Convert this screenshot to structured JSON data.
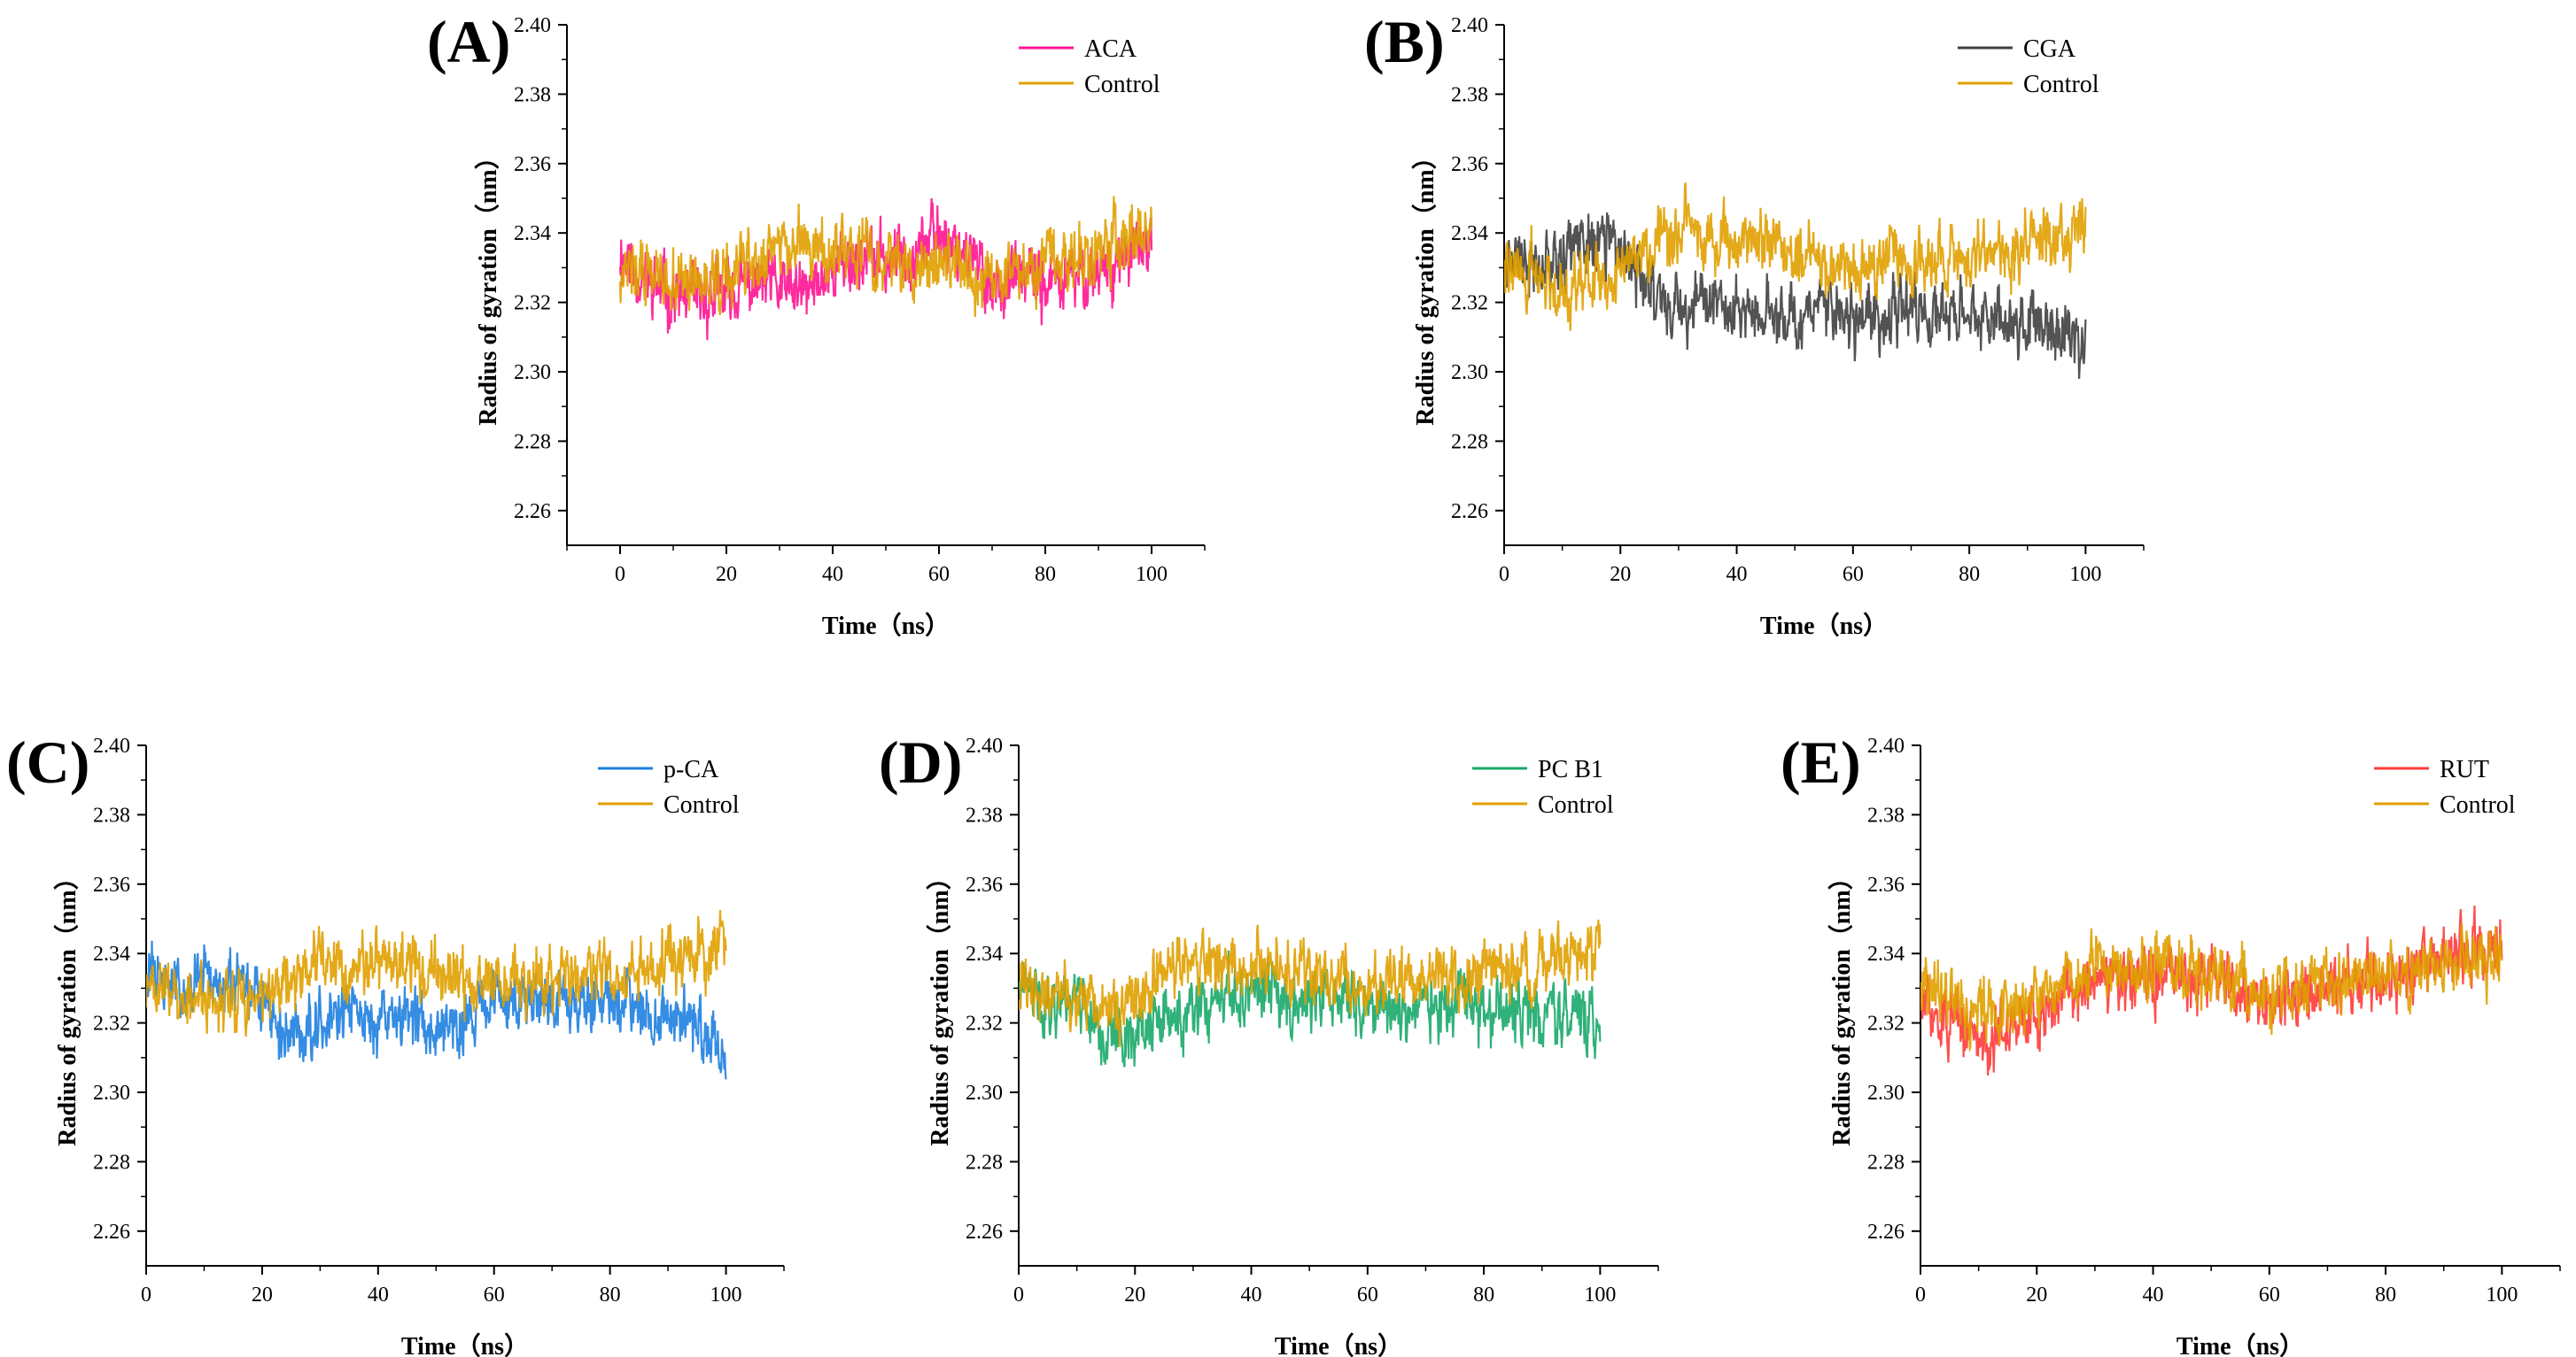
{
  "figure": {
    "background": "#ffffff"
  },
  "chart_data": [
    {
      "panel_label": "(A)",
      "type": "line",
      "xlabel": "Time（ns）",
      "ylabel": "Radius of gyration（nm）",
      "xlim": [
        -10,
        110
      ],
      "ylim": [
        2.25,
        2.4
      ],
      "xticks": [
        0,
        20,
        40,
        60,
        80,
        100
      ],
      "yticks": [
        2.26,
        2.28,
        2.3,
        2.32,
        2.34,
        2.36,
        2.38,
        2.4
      ],
      "grid": false,
      "legend_position": "top-right",
      "series": [
        {
          "name": "ACA",
          "color": "#ff1493",
          "seed": 11,
          "noise": 0.009,
          "x": [
            0,
            5,
            10,
            15,
            20,
            25,
            30,
            35,
            40,
            45,
            50,
            55,
            60,
            65,
            70,
            75,
            80,
            85,
            90,
            95,
            100
          ],
          "y": [
            2.335,
            2.326,
            2.322,
            2.32,
            2.323,
            2.325,
            2.324,
            2.322,
            2.33,
            2.333,
            2.332,
            2.335,
            2.34,
            2.335,
            2.325,
            2.327,
            2.325,
            2.326,
            2.33,
            2.332,
            2.336
          ]
        },
        {
          "name": "Control",
          "color": "#e0a000",
          "seed": 12,
          "noise": 0.009,
          "x": [
            0,
            5,
            10,
            15,
            20,
            25,
            30,
            35,
            40,
            45,
            50,
            55,
            60,
            65,
            70,
            75,
            80,
            85,
            90,
            95,
            100
          ],
          "y": [
            2.33,
            2.328,
            2.326,
            2.325,
            2.327,
            2.332,
            2.338,
            2.335,
            2.334,
            2.333,
            2.332,
            2.33,
            2.331,
            2.329,
            2.328,
            2.33,
            2.331,
            2.332,
            2.334,
            2.338,
            2.34
          ]
        }
      ]
    },
    {
      "panel_label": "(B)",
      "type": "line",
      "xlabel": "Time（ns）",
      "ylabel": "Radius of gyration（nm）",
      "xlim": [
        0,
        110
      ],
      "ylim": [
        2.25,
        2.4
      ],
      "xticks": [
        0,
        20,
        40,
        60,
        80,
        100
      ],
      "yticks": [
        2.26,
        2.28,
        2.3,
        2.32,
        2.34,
        2.36,
        2.38,
        2.4
      ],
      "grid": false,
      "legend_position": "top-right",
      "series": [
        {
          "name": "CGA",
          "color": "#404040",
          "seed": 21,
          "noise": 0.009,
          "x": [
            0,
            5,
            10,
            15,
            20,
            25,
            30,
            35,
            40,
            45,
            50,
            55,
            60,
            65,
            70,
            75,
            80,
            85,
            90,
            95,
            100
          ],
          "y": [
            2.333,
            2.332,
            2.334,
            2.338,
            2.335,
            2.325,
            2.318,
            2.32,
            2.318,
            2.316,
            2.317,
            2.318,
            2.315,
            2.316,
            2.317,
            2.316,
            2.315,
            2.317,
            2.314,
            2.312,
            2.31
          ]
        },
        {
          "name": "Control",
          "color": "#e0a000",
          "seed": 22,
          "noise": 0.009,
          "x": [
            0,
            5,
            10,
            15,
            20,
            25,
            30,
            35,
            40,
            45,
            50,
            55,
            60,
            65,
            70,
            75,
            80,
            85,
            90,
            95,
            100
          ],
          "y": [
            2.33,
            2.328,
            2.325,
            2.326,
            2.33,
            2.335,
            2.34,
            2.338,
            2.34,
            2.337,
            2.334,
            2.332,
            2.33,
            2.331,
            2.332,
            2.333,
            2.333,
            2.335,
            2.337,
            2.34,
            2.342
          ]
        }
      ]
    },
    {
      "panel_label": "(C)",
      "type": "line",
      "xlabel": "Time（ns）",
      "ylabel": "Radius of gyration（nm）",
      "xlim": [
        0,
        110
      ],
      "ylim": [
        2.25,
        2.4
      ],
      "xticks": [
        0,
        20,
        40,
        60,
        80,
        100
      ],
      "yticks": [
        2.26,
        2.28,
        2.3,
        2.32,
        2.34,
        2.36,
        2.38,
        2.4
      ],
      "grid": false,
      "legend_position": "top-right",
      "series": [
        {
          "name": "p-CA",
          "color": "#1e7fe0",
          "seed": 31,
          "noise": 0.009,
          "x": [
            0,
            5,
            10,
            15,
            20,
            25,
            30,
            35,
            40,
            45,
            50,
            55,
            60,
            65,
            70,
            75,
            80,
            85,
            90,
            95,
            100
          ],
          "y": [
            2.335,
            2.33,
            2.333,
            2.33,
            2.325,
            2.315,
            2.322,
            2.323,
            2.32,
            2.322,
            2.32,
            2.322,
            2.325,
            2.327,
            2.328,
            2.326,
            2.327,
            2.325,
            2.322,
            2.318,
            2.312
          ]
        },
        {
          "name": "Control",
          "color": "#e0a000",
          "seed": 32,
          "noise": 0.009,
          "x": [
            0,
            5,
            10,
            15,
            20,
            25,
            30,
            35,
            40,
            45,
            50,
            55,
            60,
            65,
            70,
            75,
            80,
            85,
            90,
            95,
            100
          ],
          "y": [
            2.33,
            2.328,
            2.326,
            2.325,
            2.327,
            2.332,
            2.338,
            2.336,
            2.338,
            2.336,
            2.334,
            2.332,
            2.33,
            2.331,
            2.332,
            2.333,
            2.333,
            2.335,
            2.337,
            2.34,
            2.342
          ]
        }
      ]
    },
    {
      "panel_label": "(D)",
      "type": "line",
      "xlabel": "Time（ns）",
      "ylabel": "Radius of gyration（nm）",
      "xlim": [
        0,
        110
      ],
      "ylim": [
        2.25,
        2.4
      ],
      "xticks": [
        0,
        20,
        40,
        60,
        80,
        100
      ],
      "yticks": [
        2.26,
        2.28,
        2.3,
        2.32,
        2.34,
        2.36,
        2.38,
        2.4
      ],
      "grid": false,
      "legend_position": "top-right",
      "series": [
        {
          "name": "PC B1",
          "color": "#1aa86a",
          "seed": 41,
          "noise": 0.009,
          "x": [
            0,
            5,
            10,
            15,
            20,
            25,
            30,
            35,
            40,
            45,
            50,
            55,
            60,
            65,
            70,
            75,
            80,
            85,
            90,
            95,
            100
          ],
          "y": [
            2.33,
            2.325,
            2.33,
            2.315,
            2.318,
            2.32,
            2.322,
            2.325,
            2.33,
            2.328,
            2.326,
            2.327,
            2.325,
            2.324,
            2.325,
            2.324,
            2.323,
            2.322,
            2.323,
            2.322,
            2.32
          ]
        },
        {
          "name": "Control",
          "color": "#e0a000",
          "seed": 42,
          "noise": 0.009,
          "x": [
            0,
            5,
            10,
            15,
            20,
            25,
            30,
            35,
            40,
            45,
            50,
            55,
            60,
            65,
            70,
            75,
            80,
            85,
            90,
            95,
            100
          ],
          "y": [
            2.33,
            2.328,
            2.326,
            2.323,
            2.327,
            2.333,
            2.338,
            2.335,
            2.338,
            2.336,
            2.334,
            2.332,
            2.33,
            2.331,
            2.332,
            2.333,
            2.333,
            2.335,
            2.337,
            2.339,
            2.341
          ]
        }
      ]
    },
    {
      "panel_label": "(E)",
      "type": "line",
      "xlabel": "Time（ns）",
      "ylabel": "Radius of gyration（nm）",
      "xlim": [
        0,
        110
      ],
      "ylim": [
        2.25,
        2.4
      ],
      "xticks": [
        0,
        20,
        40,
        60,
        80,
        100
      ],
      "yticks": [
        2.26,
        2.28,
        2.3,
        2.32,
        2.34,
        2.36,
        2.38,
        2.4
      ],
      "grid": false,
      "legend_position": "top-right",
      "series": [
        {
          "name": "RUT",
          "color": "#ff3b3b",
          "seed": 51,
          "noise": 0.009,
          "x": [
            0,
            5,
            10,
            15,
            20,
            25,
            30,
            35,
            40,
            45,
            50,
            55,
            60,
            65,
            70,
            75,
            80,
            85,
            90,
            95,
            100
          ],
          "y": [
            2.325,
            2.32,
            2.315,
            2.318,
            2.322,
            2.328,
            2.332,
            2.33,
            2.332,
            2.334,
            2.335,
            2.33,
            2.325,
            2.328,
            2.33,
            2.332,
            2.333,
            2.335,
            2.338,
            2.34,
            2.34
          ]
        },
        {
          "name": "Control",
          "color": "#e0a000",
          "seed": 52,
          "noise": 0.009,
          "x": [
            0,
            5,
            10,
            15,
            20,
            25,
            30,
            35,
            40,
            45,
            50,
            55,
            60,
            65,
            70,
            75,
            80,
            85,
            90,
            95,
            100
          ],
          "y": [
            2.33,
            2.328,
            2.325,
            2.325,
            2.327,
            2.332,
            2.337,
            2.335,
            2.336,
            2.335,
            2.333,
            2.332,
            2.33,
            2.331,
            2.332,
            2.333,
            2.333,
            2.334,
            2.336,
            2.338,
            2.34
          ]
        }
      ]
    }
  ]
}
